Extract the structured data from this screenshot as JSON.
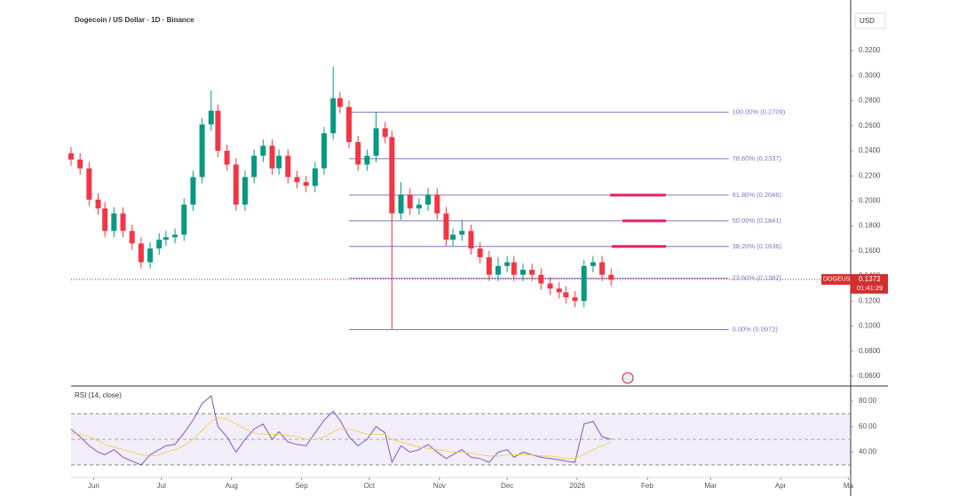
{
  "chart_data": [
    {
      "type": "candlestick",
      "title": "Dogecoin / US Dollar · 1D · Binance",
      "currency": "USD",
      "x": [
        -10,
        -6,
        -2,
        2,
        5,
        9,
        13,
        17,
        21,
        25,
        29,
        32,
        36,
        40,
        44,
        48,
        52,
        55,
        59,
        63,
        67,
        71,
        75,
        79,
        82,
        86,
        90,
        94,
        98,
        102,
        106,
        109,
        113,
        117,
        121,
        125,
        129,
        132,
        136,
        140,
        144,
        148,
        152,
        156,
        159,
        163,
        167,
        171,
        175,
        179,
        183,
        186,
        190,
        194,
        198,
        202,
        206,
        209,
        213,
        217,
        221,
        225,
        229
      ],
      "open": [
        0.238,
        0.233,
        0.226,
        0.201,
        0.194,
        0.176,
        0.19,
        0.176,
        0.166,
        0.151,
        0.162,
        0.169,
        0.171,
        0.173,
        0.197,
        0.219,
        0.261,
        0.272,
        0.24,
        0.229,
        0.197,
        0.219,
        0.236,
        0.244,
        0.226,
        0.236,
        0.219,
        0.215,
        0.212,
        0.226,
        0.254,
        0.282,
        0.275,
        0.247,
        0.229,
        0.236,
        0.258,
        0.251,
        0.19,
        0.205,
        0.194,
        0.197,
        0.205,
        0.19,
        0.169,
        0.173,
        0.176,
        0.162,
        0.155,
        0.141,
        0.148,
        0.151,
        0.141,
        0.145,
        0.141,
        0.134,
        0.13,
        0.127,
        0.123,
        0.12,
        0.148,
        0.151,
        0.141
      ],
      "high": [
        0.243,
        0.238,
        0.231,
        0.206,
        0.199,
        0.195,
        0.195,
        0.181,
        0.171,
        0.167,
        0.174,
        0.176,
        0.178,
        0.202,
        0.224,
        0.266,
        0.288,
        0.277,
        0.245,
        0.234,
        0.224,
        0.241,
        0.249,
        0.249,
        0.241,
        0.241,
        0.224,
        0.22,
        0.231,
        0.259,
        0.307,
        0.287,
        0.28,
        0.252,
        0.241,
        0.271,
        0.263,
        0.256,
        0.215,
        0.21,
        0.202,
        0.21,
        0.21,
        0.195,
        0.178,
        0.185,
        0.181,
        0.167,
        0.16,
        0.155,
        0.156,
        0.156,
        0.15,
        0.15,
        0.146,
        0.139,
        0.135,
        0.132,
        0.128,
        0.153,
        0.156,
        0.156,
        0.146
      ],
      "low": [
        0.228,
        0.221,
        0.196,
        0.189,
        0.171,
        0.171,
        0.171,
        0.161,
        0.146,
        0.146,
        0.157,
        0.164,
        0.166,
        0.168,
        0.192,
        0.214,
        0.256,
        0.235,
        0.224,
        0.192,
        0.192,
        0.214,
        0.231,
        0.221,
        0.221,
        0.214,
        0.21,
        0.207,
        0.207,
        0.221,
        0.249,
        0.27,
        0.242,
        0.224,
        0.224,
        0.231,
        0.246,
        0.0972,
        0.185,
        0.189,
        0.189,
        0.192,
        0.185,
        0.164,
        0.164,
        0.168,
        0.157,
        0.15,
        0.136,
        0.136,
        0.143,
        0.136,
        0.136,
        0.136,
        0.129,
        0.125,
        0.122,
        0.118,
        0.115,
        0.115,
        0.143,
        0.136,
        0.132
      ],
      "close": [
        0.233,
        0.226,
        0.201,
        0.194,
        0.176,
        0.19,
        0.176,
        0.166,
        0.151,
        0.162,
        0.169,
        0.171,
        0.173,
        0.197,
        0.219,
        0.261,
        0.272,
        0.24,
        0.229,
        0.197,
        0.219,
        0.236,
        0.244,
        0.226,
        0.236,
        0.219,
        0.215,
        0.212,
        0.226,
        0.254,
        0.282,
        0.275,
        0.247,
        0.229,
        0.236,
        0.258,
        0.251,
        0.19,
        0.205,
        0.194,
        0.197,
        0.205,
        0.19,
        0.169,
        0.173,
        0.176,
        0.162,
        0.155,
        0.141,
        0.148,
        0.151,
        0.141,
        0.145,
        0.141,
        0.134,
        0.13,
        0.127,
        0.123,
        0.12,
        0.148,
        0.151,
        0.141,
        0.137
      ],
      "up_color": "#089981",
      "down_color": "#f23645",
      "xlim": [
        -10,
        335
      ],
      "ylim": [
        0.0522,
        0.3604
      ],
      "yticks": [
        {
          "value": 0.32,
          "label": "0.3200"
        },
        {
          "value": 0.3,
          "label": "0.3000"
        },
        {
          "value": 0.28,
          "label": "0.2800"
        },
        {
          "value": 0.26,
          "label": "0.2600"
        },
        {
          "value": 0.24,
          "label": "0.2400"
        },
        {
          "value": 0.22,
          "label": "0.2200"
        },
        {
          "value": 0.2,
          "label": "0.2000"
        },
        {
          "value": 0.18,
          "label": "0.1800"
        },
        {
          "value": 0.16,
          "label": "0.1600"
        },
        {
          "value": 0.14,
          "label": "0.1400"
        },
        {
          "value": 0.12,
          "label": "0.1200"
        },
        {
          "value": 0.1,
          "label": "0.1000"
        },
        {
          "value": 0.08,
          "label": "0.0800"
        },
        {
          "value": 0.06,
          "label": "0.0600"
        }
      ],
      "fib_levels": [
        {
          "value": 0.2709,
          "label": "100.00% (0.2709)"
        },
        {
          "value": 0.2337,
          "label": "78.60% (0.2337)"
        },
        {
          "value": 0.2046,
          "label": "61.80% (0.2046)"
        },
        {
          "value": 0.1841,
          "label": "50.00% (0.1841)"
        },
        {
          "value": 0.1636,
          "label": "38.20% (0.1636)"
        },
        {
          "value": 0.1382,
          "label": "23.60% (0.1382)"
        },
        {
          "value": 0.0972,
          "label": "0.00% (0.0972)"
        }
      ],
      "fib_x": [
        113,
        281
      ],
      "fib_color": "#7e74c8",
      "target_levels": [
        2,
        3,
        4
      ],
      "target_color": "#e91e63",
      "symbol": "DOGEUSD",
      "last": 0.1373,
      "countdown": "01:41:29",
      "last_color": "#d32f2f"
    },
    {
      "type": "line",
      "title": "RSI (14, close)",
      "x": [
        -10,
        -6,
        -2,
        2,
        5,
        9,
        13,
        17,
        21,
        25,
        29,
        32,
        36,
        40,
        44,
        48,
        52,
        55,
        59,
        63,
        67,
        71,
        75,
        79,
        82,
        86,
        90,
        94,
        98,
        102,
        106,
        109,
        113,
        117,
        121,
        125,
        129,
        132,
        136,
        140,
        144,
        148,
        152,
        156,
        159,
        163,
        167,
        171,
        175,
        179,
        183,
        186,
        190,
        194,
        198,
        202,
        206,
        209,
        213,
        217,
        221,
        225,
        229
      ],
      "series": [
        {
          "color": "#7e57c2",
          "values": [
            58,
            52,
            45,
            40,
            38,
            42,
            36,
            33,
            30,
            38,
            42,
            45,
            46,
            55,
            65,
            78,
            84,
            60,
            52,
            40,
            50,
            58,
            62,
            50,
            56,
            48,
            46,
            45,
            55,
            65,
            72,
            65,
            52,
            45,
            50,
            60,
            55,
            32,
            45,
            40,
            42,
            46,
            40,
            35,
            38,
            42,
            36,
            35,
            32,
            40,
            42,
            36,
            40,
            38,
            36,
            35,
            34,
            33,
            32,
            62,
            64,
            52,
            50
          ]
        },
        {
          "color": "#f5c842",
          "values": [
            55,
            54,
            52,
            49,
            46,
            44,
            42,
            40,
            38,
            37,
            38,
            40,
            42,
            45,
            50,
            57,
            64,
            67,
            66,
            62,
            58,
            55,
            54,
            54,
            54,
            53,
            52,
            50,
            50,
            52,
            56,
            58,
            58,
            56,
            54,
            54,
            54,
            50,
            48,
            46,
            44,
            43,
            42,
            41,
            40,
            40,
            39,
            38,
            37,
            37,
            38,
            38,
            38,
            38,
            37,
            37,
            36,
            35,
            35,
            38,
            42,
            45,
            48
          ]
        }
      ],
      "xlim": [
        -10,
        335
      ],
      "ylim": [
        21,
        91
      ],
      "yticks": [
        {
          "value": 40,
          "label": "40.00"
        },
        {
          "value": 60,
          "label": "60.00"
        },
        {
          "value": 80,
          "label": "80.00"
        }
      ],
      "bands": [
        30,
        70
      ],
      "midline": 50,
      "xticks": [
        {
          "value": 0,
          "label": "Jun"
        },
        {
          "value": 30,
          "label": "Jul"
        },
        {
          "value": 61,
          "label": "Aug"
        },
        {
          "value": 92,
          "label": "Sep"
        },
        {
          "value": 122,
          "label": "Oct"
        },
        {
          "value": 153,
          "label": "Nov"
        },
        {
          "value": 183,
          "label": "Dec"
        },
        {
          "value": 214,
          "label": "2026"
        },
        {
          "value": 245,
          "label": "Feb"
        },
        {
          "value": 273,
          "label": "Mar"
        },
        {
          "value": 304,
          "label": "Apr"
        },
        {
          "value": 334,
          "label": "Ma"
        }
      ]
    }
  ]
}
